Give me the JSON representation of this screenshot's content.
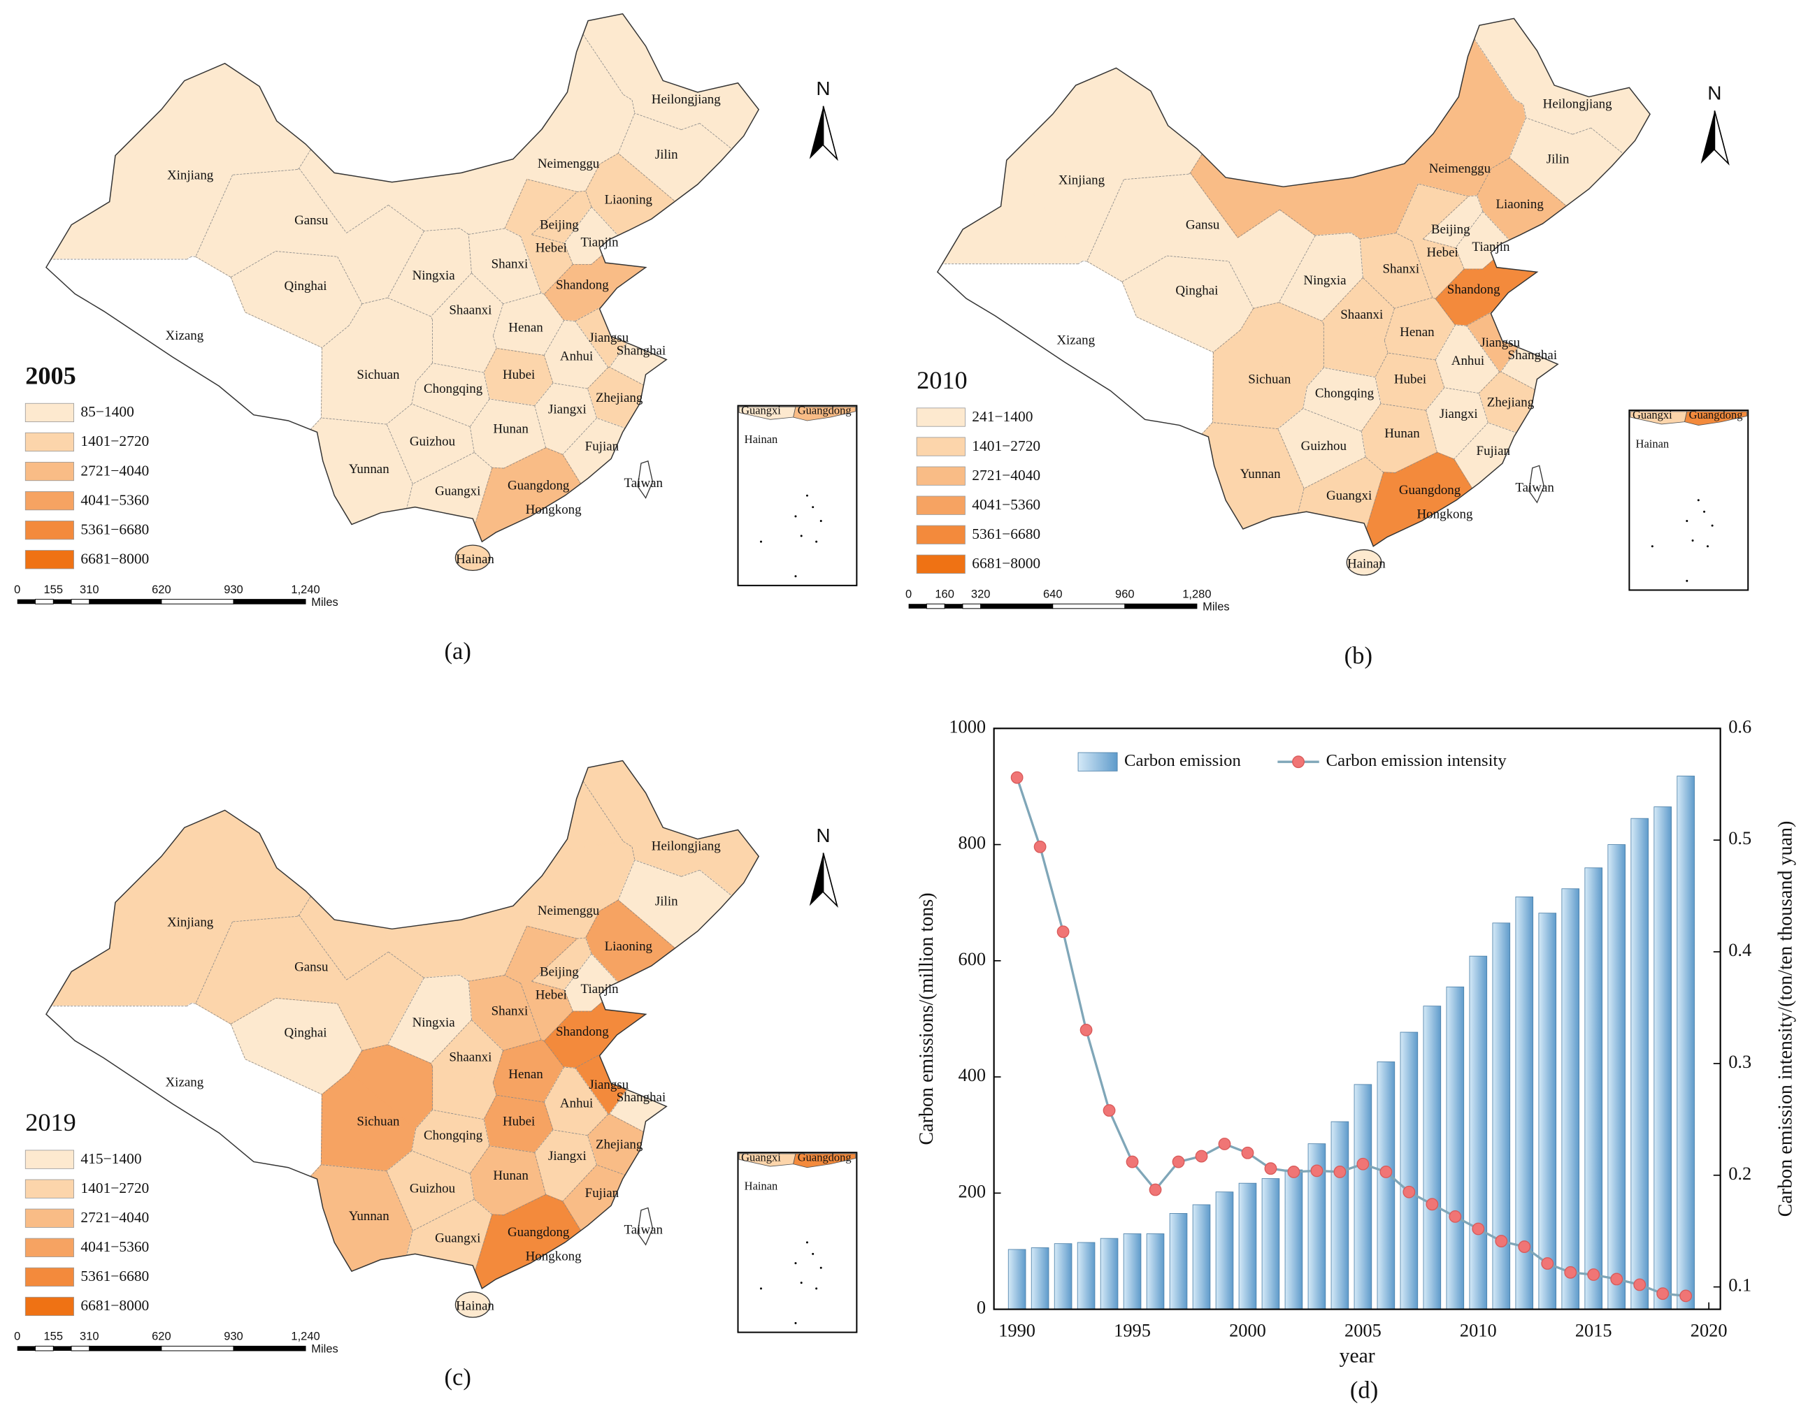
{
  "class_colors": [
    "#fde9cf",
    "#fcd5ab",
    "#f9bc86",
    "#f6a362",
    "#f38a3c",
    "#ef7214"
  ],
  "panel_labels": [
    "(a)",
    "(b)",
    "(c)",
    "(d)"
  ],
  "maps": [
    {
      "year": "2005",
      "legend": [
        "85−1400",
        "1401−2720",
        "2721−4040",
        "4041−5360",
        "5361−6680",
        "6681−8000"
      ],
      "scale": [
        0,
        155,
        310,
        620,
        930,
        {
          "value": 1240,
          "label": "1,240"
        }
      ],
      "scale_unit": "Miles",
      "north": "N",
      "inset_labels": [
        "Guangxi",
        "Guangdong",
        "Hainan"
      ],
      "provinces": [
        {
          "name": "Xinjiang",
          "class": 0
        },
        {
          "name": "Xizang",
          "class": null
        },
        {
          "name": "Qinghai",
          "class": 0
        },
        {
          "name": "Gansu",
          "class": 0
        },
        {
          "name": "Neimenggu",
          "class": 0
        },
        {
          "name": "Heilongjiang",
          "class": 0
        },
        {
          "name": "Jilin",
          "class": 0
        },
        {
          "name": "Liaoning",
          "class": 1
        },
        {
          "name": "Beijing",
          "class": 1
        },
        {
          "name": "Tianjin",
          "class": 0
        },
        {
          "name": "Hebei",
          "class": 1
        },
        {
          "name": "Shanxi",
          "class": 0
        },
        {
          "name": "Ningxia",
          "class": 0
        },
        {
          "name": "Shaanxi",
          "class": 0
        },
        {
          "name": "Henan",
          "class": 0
        },
        {
          "name": "Shandong",
          "class": 2
        },
        {
          "name": "Jiangsu",
          "class": 1
        },
        {
          "name": "Anhui",
          "class": 0
        },
        {
          "name": "Shanghai",
          "class": 0
        },
        {
          "name": "Hubei",
          "class": 1
        },
        {
          "name": "Sichuan",
          "class": 0
        },
        {
          "name": "Chongqing",
          "class": 0
        },
        {
          "name": "Zhejiang",
          "class": 1
        },
        {
          "name": "Jiangxi",
          "class": 0
        },
        {
          "name": "Hunan",
          "class": 0
        },
        {
          "name": "Guizhou",
          "class": 0
        },
        {
          "name": "Yunnan",
          "class": 0
        },
        {
          "name": "Fujian",
          "class": 0
        },
        {
          "name": "Guangxi",
          "class": 0
        },
        {
          "name": "Guangdong",
          "class": 2
        },
        {
          "name": "Hongkong"
        },
        {
          "name": "Hainan",
          "class": 1
        },
        {
          "name": "Taiwan",
          "class": null
        }
      ]
    },
    {
      "year": "2010",
      "legend": [
        "241−1400",
        "1401−2720",
        "2721−4040",
        "4041−5360",
        "5361−6680",
        "6681−8000"
      ],
      "scale": [
        0,
        160,
        320,
        640,
        960,
        {
          "value": 1280,
          "label": "1,280"
        }
      ],
      "scale_unit": "Miles",
      "north": "N",
      "inset_labels": [
        "Guangxi",
        "Guangdong",
        "Hainan"
      ],
      "provinces": [
        {
          "name": "Xinjiang",
          "class": 0
        },
        {
          "name": "Xizang",
          "class": null
        },
        {
          "name": "Qinghai",
          "class": 0
        },
        {
          "name": "Gansu",
          "class": 0
        },
        {
          "name": "Neimenggu",
          "class": 2
        },
        {
          "name": "Heilongjiang",
          "class": 0
        },
        {
          "name": "Jilin",
          "class": 0
        },
        {
          "name": "Liaoning",
          "class": 2
        },
        {
          "name": "Beijing",
          "class": 0
        },
        {
          "name": "Tianjin",
          "class": 0
        },
        {
          "name": "Hebei",
          "class": 1
        },
        {
          "name": "Shanxi",
          "class": 1
        },
        {
          "name": "Ningxia",
          "class": 0
        },
        {
          "name": "Shaanxi",
          "class": 1
        },
        {
          "name": "Henan",
          "class": 1
        },
        {
          "name": "Shandong",
          "class": 4
        },
        {
          "name": "Jiangsu",
          "class": 2
        },
        {
          "name": "Anhui",
          "class": 0
        },
        {
          "name": "Shanghai",
          "class": 0
        },
        {
          "name": "Hubei",
          "class": 1
        },
        {
          "name": "Sichuan",
          "class": 1
        },
        {
          "name": "Chongqing",
          "class": 0
        },
        {
          "name": "Zhejiang",
          "class": 1
        },
        {
          "name": "Jiangxi",
          "class": 0
        },
        {
          "name": "Hunan",
          "class": 1
        },
        {
          "name": "Guizhou",
          "class": 0
        },
        {
          "name": "Yunnan",
          "class": 1
        },
        {
          "name": "Fujian",
          "class": 0
        },
        {
          "name": "Guangxi",
          "class": 1
        },
        {
          "name": "Guangdong",
          "class": 4
        },
        {
          "name": "Hongkong"
        },
        {
          "name": "Hainan",
          "class": 0
        },
        {
          "name": "Taiwan",
          "class": null
        }
      ]
    },
    {
      "year": "2019",
      "legend": [
        "415−1400",
        "1401−2720",
        "2721−4040",
        "4041−5360",
        "5361−6680",
        "6681−8000"
      ],
      "scale": [
        0,
        155,
        310,
        620,
        930,
        {
          "value": 1240,
          "label": "1,240"
        }
      ],
      "scale_unit": "Miles",
      "north": "N",
      "inset_labels": [
        "Guangxi",
        "Guangdong",
        "Hainan"
      ],
      "provinces": [
        {
          "name": "Xinjiang",
          "class": 1
        },
        {
          "name": "Xizang",
          "class": null
        },
        {
          "name": "Qinghai",
          "class": 0
        },
        {
          "name": "Gansu",
          "class": 1
        },
        {
          "name": "Neimenggu",
          "class": 1
        },
        {
          "name": "Heilongjiang",
          "class": 1
        },
        {
          "name": "Jilin",
          "class": 0
        },
        {
          "name": "Liaoning",
          "class": 3
        },
        {
          "name": "Beijing",
          "class": 1
        },
        {
          "name": "Tianjin",
          "class": 0
        },
        {
          "name": "Hebei",
          "class": 2
        },
        {
          "name": "Shanxi",
          "class": 2
        },
        {
          "name": "Ningxia",
          "class": 0
        },
        {
          "name": "Shaanxi",
          "class": 1
        },
        {
          "name": "Henan",
          "class": 3
        },
        {
          "name": "Shandong",
          "class": 4
        },
        {
          "name": "Jiangsu",
          "class": 4
        },
        {
          "name": "Anhui",
          "class": 1
        },
        {
          "name": "Shanghai",
          "class": 0
        },
        {
          "name": "Hubei",
          "class": 3
        },
        {
          "name": "Sichuan",
          "class": 3
        },
        {
          "name": "Chongqing",
          "class": 1
        },
        {
          "name": "Zhejiang",
          "class": 2
        },
        {
          "name": "Jiangxi",
          "class": 1
        },
        {
          "name": "Hunan",
          "class": 2
        },
        {
          "name": "Guizhou",
          "class": 1
        },
        {
          "name": "Yunnan",
          "class": 2
        },
        {
          "name": "Fujian",
          "class": 2
        },
        {
          "name": "Guangxi",
          "class": 1
        },
        {
          "name": "Guangdong",
          "class": 4
        },
        {
          "name": "Hongkong"
        },
        {
          "name": "Hainan",
          "class": 0
        },
        {
          "name": "Taiwan",
          "class": null
        }
      ]
    }
  ],
  "chart_data": {
    "type": "bar",
    "x": [
      1990,
      1991,
      1992,
      1993,
      1994,
      1995,
      1996,
      1997,
      1998,
      1999,
      2000,
      2001,
      2002,
      2003,
      2004,
      2005,
      2006,
      2007,
      2008,
      2009,
      2010,
      2011,
      2012,
      2013,
      2014,
      2015,
      2016,
      2017,
      2018,
      2019
    ],
    "xlim": [
      1989,
      2020.5
    ],
    "xticks": [
      1990,
      1995,
      2000,
      2005,
      2010,
      2015,
      2020
    ],
    "ylim": [
      0,
      1000
    ],
    "yticks": [
      0,
      200,
      400,
      600,
      800,
      1000
    ],
    "y2lim": [
      0.08,
      0.6
    ],
    "y2ticks": [
      0.1,
      0.2,
      0.3,
      0.4,
      0.5,
      0.6
    ],
    "xlabel": "year",
    "ylabel": "Carbon emissions/(million tons)",
    "y2label": "Carbon emission intensity/(ton/ten thousand yuan)",
    "series": [
      {
        "name": "Carbon emission",
        "type": "bar",
        "color": "#5f9bcb",
        "values": [
          103,
          106,
          113,
          115,
          122,
          130,
          130,
          165,
          180,
          202,
          217,
          225,
          240,
          285,
          323,
          387,
          426,
          477,
          522,
          555,
          608,
          665,
          710,
          682,
          724,
          760,
          800,
          845,
          865,
          918
        ]
      },
      {
        "name": "Carbon emission intensity",
        "type": "line",
        "axis": "y2",
        "color": "#7fa6b8",
        "marker_color": "#f07575",
        "values": [
          0.556,
          0.494,
          0.418,
          0.33,
          0.258,
          0.212,
          0.187,
          0.212,
          0.217,
          0.228,
          0.22,
          0.206,
          0.203,
          0.204,
          0.203,
          0.21,
          0.203,
          0.185,
          0.174,
          0.163,
          0.152,
          0.141,
          0.136,
          0.121,
          0.113,
          0.111,
          0.107,
          0.102,
          0.094,
          0.092
        ]
      }
    ]
  }
}
